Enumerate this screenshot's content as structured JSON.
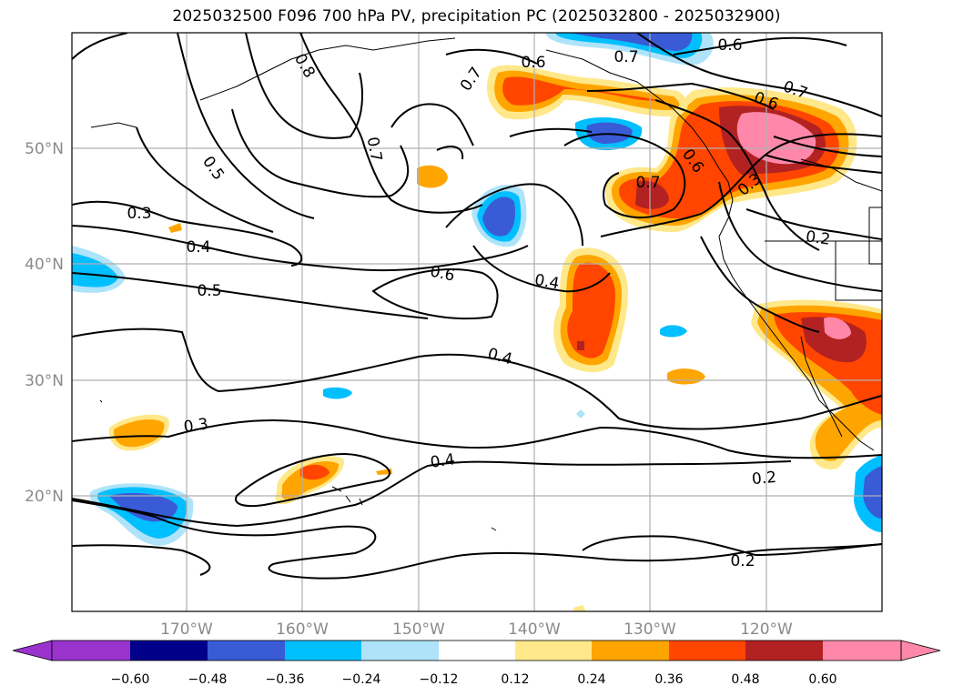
{
  "title": "2025032500 F096 700 hPa PV, precipitation PC (2025032800 - 2025032900)",
  "lat_labels": [
    "50°N",
    "40°N",
    "30°N",
    "20°N"
  ],
  "lon_labels": [
    "170°W",
    "160°W",
    "150°W",
    "140°W",
    "130°W",
    "120°W"
  ],
  "contour_labels": [
    "0.6",
    "0.7",
    "0.8",
    "0.7",
    "0.5",
    "0.7",
    "0.6",
    "0.7",
    "0.6",
    "0.6",
    "0.3",
    "0.7",
    "0.3",
    "0.4",
    "0.2",
    "0.5",
    "0.6",
    "0.4",
    "0.4",
    "0.3",
    "0.4",
    "0.2",
    "0.2"
  ],
  "colorbar": {
    "ticks": [
      "−0.60",
      "−0.48",
      "−0.36",
      "−0.24",
      "−0.12",
      "0.12",
      "0.24",
      "0.36",
      "0.48",
      "0.60"
    ],
    "colors": [
      "#9933cc",
      "#00008b",
      "#3a5bd6",
      "#00bfff",
      "#aee3fa",
      "#ffffff",
      "#ffe88a",
      "#ffa500",
      "#ff4500",
      "#b22222",
      "#ff88aa"
    ]
  },
  "fill_colors": {
    "neg_light": "#aee3fa",
    "neg_mid": "#00bfff",
    "neg_dark": "#3a5bd6",
    "pos_light": "#ffe88a",
    "pos_mid": "#ffa500",
    "pos_strong": "#ff4500",
    "pos_dark": "#b22222",
    "pos_max": "#ff88aa"
  }
}
